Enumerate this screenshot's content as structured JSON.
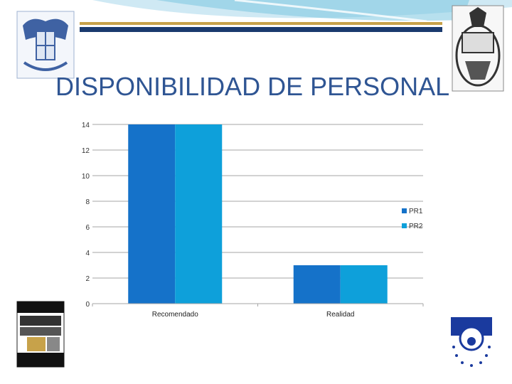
{
  "slide": {
    "title": "DISPONIBILIDAD DE PERSONAL",
    "logos": {
      "left_top": "university-seal-left",
      "right_top": "university-seal-right",
      "bottom_left": "reunion-bibliotecarios-logo",
      "bottom_right": "blue-circle-logo"
    }
  },
  "colors": {
    "title": "#2f5593",
    "series_1": "#1572c9",
    "series_2": "#0ea0da",
    "header_stripe_navy": "#1a3a6e",
    "header_stripe_gold": "#c7a24a",
    "header_swoosh": "#7cc6e0"
  },
  "chart_data": {
    "type": "bar",
    "categories": [
      "Recomendado",
      "Realidad"
    ],
    "series": [
      {
        "name": "PR1",
        "values": [
          14,
          3
        ]
      },
      {
        "name": "PR2",
        "values": [
          14,
          3
        ]
      }
    ],
    "yticks": [
      "0",
      "2",
      "4",
      "6",
      "8",
      "10",
      "12",
      "14"
    ],
    "ylim": [
      0,
      14
    ],
    "grid": true,
    "legend": "right"
  }
}
